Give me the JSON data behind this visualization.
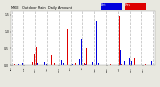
{
  "title": "MKE   Outdoor Rain  Daily Amount",
  "background_color": "#e8e8e0",
  "plot_bg": "#ffffff",
  "ylim": [
    0,
    1.6
  ],
  "legend_blue_color": "#0000dd",
  "legend_red_color": "#dd0000",
  "grid_color": "#bbbbbb",
  "n_points": 365,
  "bar_width": 0.9
}
